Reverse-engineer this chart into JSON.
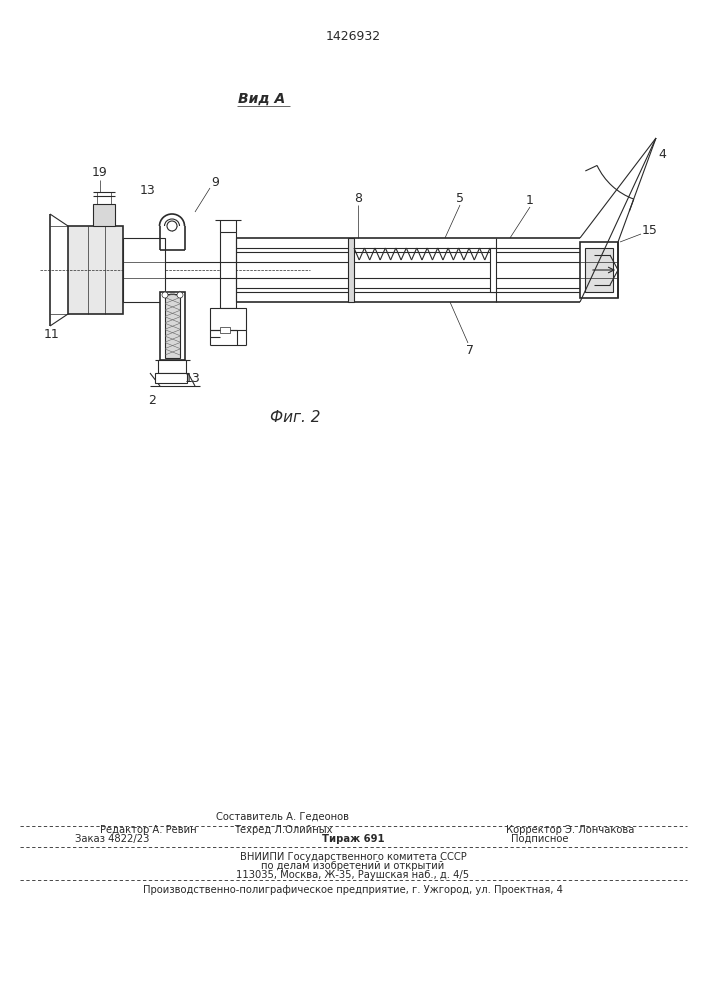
{
  "patent_number": "1426932",
  "view_label": "Вид А",
  "fig_label": "Фиг. 2",
  "background_color": "#ffffff",
  "line_color": "#2a2a2a",
  "footer_line1_left": "Редактор А. Ревин",
  "footer_line1_center_top": "Составитель А. Гедеонов",
  "footer_line1_center": "Техред Л.Олийных",
  "footer_line1_right": "Корректор Э. Лончакова",
  "footer_line2_left": "Заказ 4822/23",
  "footer_line2_center": "Тираж 691",
  "footer_line2_right": "Подписное",
  "footer_line3": "ВНИИПИ Государственного комитета СССР",
  "footer_line4": "по делам изобретений и открытий",
  "footer_line5": "113035, Москва, Ж-35, Раушская наб., д. 4/5",
  "footer_line6": "Производственно-полиграфическое предприятие, г. Ужгород, ул. Проектная, 4"
}
